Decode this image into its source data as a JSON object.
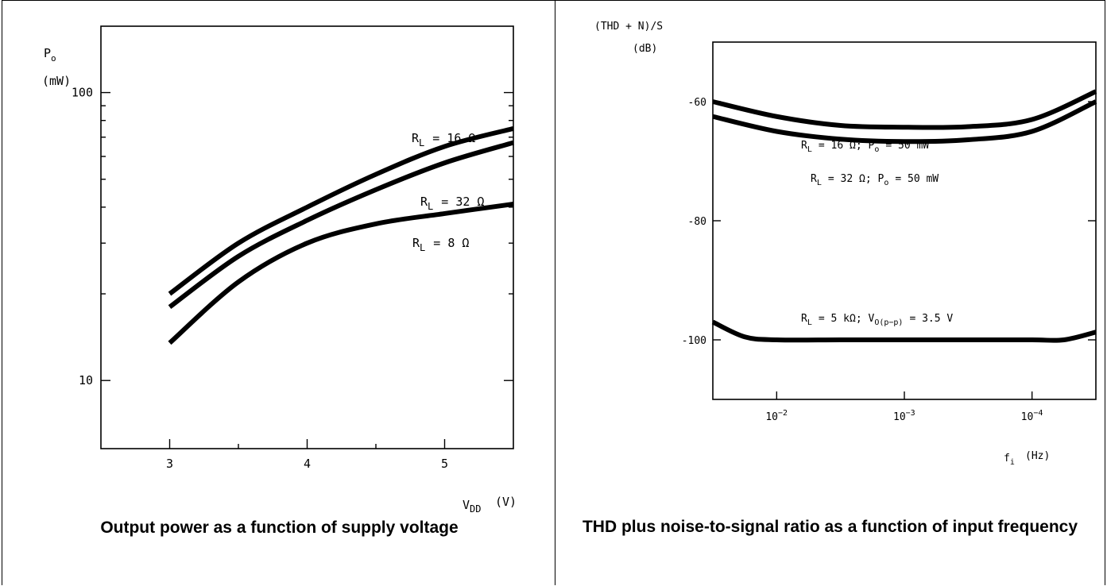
{
  "panels": [
    {
      "caption": "Output power as a function of supply voltage",
      "ylabel_symbol": "P",
      "ylabel_sub": "o",
      "ylabel_unit": "(mW)",
      "xlabel_symbol": "V",
      "xlabel_sub": "DD",
      "xlabel_unit": "(V)",
      "yticks": [
        "100",
        "10"
      ],
      "xticks": [
        "3",
        "4",
        "5"
      ],
      "series_labels": [
        "R",
        "R",
        "R"
      ],
      "series_label_subs": [
        "L",
        "L",
        "L"
      ],
      "series_label_values": [
        "= 16 Ω",
        "= 32 Ω",
        "= 8 Ω"
      ]
    },
    {
      "caption": "THD plus noise-to-signal ratio as a function of input frequency",
      "ylabel_line1": "(THD + N)/S",
      "ylabel_line2": "(dB)",
      "xlabel_symbol": "f",
      "xlabel_sub": "i",
      "xlabel_unit": "(Hz)",
      "yticks": [
        "-60",
        "-80",
        "-100"
      ],
      "xticks_base": [
        "10",
        "10",
        "10"
      ],
      "xticks_exp": [
        "−2",
        "−3",
        "−4"
      ],
      "series_labels": [
        {
          "a": "R",
          "as": "L",
          "b": "= 16 Ω; P",
          "bs": "o",
          "c": "= 50 mW"
        },
        {
          "a": "R",
          "as": "L",
          "b": "= 32 Ω; P",
          "bs": "o",
          "c": "= 50 mW"
        },
        {
          "a": "R",
          "as": "L",
          "b": "= 5 kΩ; V",
          "bs": "O(p−p)",
          "c": "= 3.5 V"
        }
      ]
    }
  ],
  "chart_data": [
    {
      "type": "line",
      "title": "Output power as a function of supply voltage",
      "xlabel": "VDD (V)",
      "ylabel": "Po (mW)",
      "xlim": [
        2.5,
        5.5
      ],
      "ylim": [
        5.8,
        170
      ],
      "yscale": "log",
      "grid": false,
      "series": [
        {
          "name": "RL = 16 Ω",
          "x": [
            3,
            3.5,
            4,
            4.5,
            5,
            5.5
          ],
          "values": [
            20,
            30,
            40,
            52,
            65,
            75
          ]
        },
        {
          "name": "RL = 32 Ω",
          "x": [
            3,
            3.5,
            4,
            4.5,
            5,
            5.5
          ],
          "values": [
            18,
            27,
            36,
            46,
            57,
            67
          ]
        },
        {
          "name": "RL = 8 Ω",
          "x": [
            3,
            3.5,
            4,
            4.5,
            5,
            5.5
          ],
          "values": [
            13.5,
            22,
            30,
            35,
            38,
            41
          ]
        }
      ]
    },
    {
      "type": "line",
      "title": "THD plus noise-to-signal ratio as a function of input frequency",
      "xlabel": "fi (Hz)",
      "ylabel": "(THD + N)/S (dB)",
      "xlim": [
        -1.5,
        -4.5
      ],
      "ylim": [
        -110,
        -50
      ],
      "grid": false,
      "series": [
        {
          "name": "RL = 16 Ω; Po = 50 mW",
          "x": [
            -1.5,
            -2,
            -2.5,
            -3,
            -3.5,
            -4,
            -4.5
          ],
          "values": [
            -60,
            -62.5,
            -64,
            -64.3,
            -64.2,
            -63,
            -58.3
          ]
        },
        {
          "name": "RL = 32 Ω; Po = 50 mW",
          "x": [
            -1.5,
            -2,
            -2.5,
            -3,
            -3.5,
            -4,
            -4.5
          ],
          "values": [
            -62.5,
            -65,
            -66.3,
            -66.7,
            -66.4,
            -65,
            -60
          ]
        },
        {
          "name": "RL = 5 kΩ; VO(p−p) = 3.5 V",
          "x": [
            -1.5,
            -1.75,
            -2,
            -2.5,
            -3,
            -3.5,
            -4,
            -4.25,
            -4.5
          ],
          "values": [
            -97,
            -99.5,
            -100,
            -100,
            -100,
            -100,
            -100,
            -100,
            -98.7
          ]
        }
      ]
    }
  ]
}
